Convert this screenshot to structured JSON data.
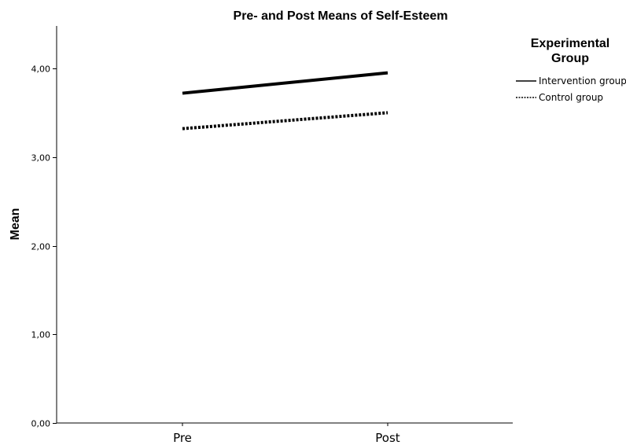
{
  "chart_data": {
    "type": "line",
    "title": "Pre- and Post Means of Self-Esteem",
    "xlabel": "",
    "ylabel": "Mean",
    "categories": [
      "Pre",
      "Post"
    ],
    "ylim": [
      0,
      4
    ],
    "yticks": [
      "0,00",
      "1,00",
      "2,00",
      "3,00",
      "4,00"
    ],
    "grid": false,
    "legend": {
      "title_line1": "Experimental",
      "title_line2": "Group",
      "placement": "right"
    },
    "series": [
      {
        "name": "Intervention group",
        "values": [
          3.72,
          3.95
        ],
        "style": "solid",
        "color": "#000000"
      },
      {
        "name": "Control group",
        "values": [
          3.32,
          3.5
        ],
        "style": "dotted",
        "color": "#000000"
      }
    ]
  }
}
